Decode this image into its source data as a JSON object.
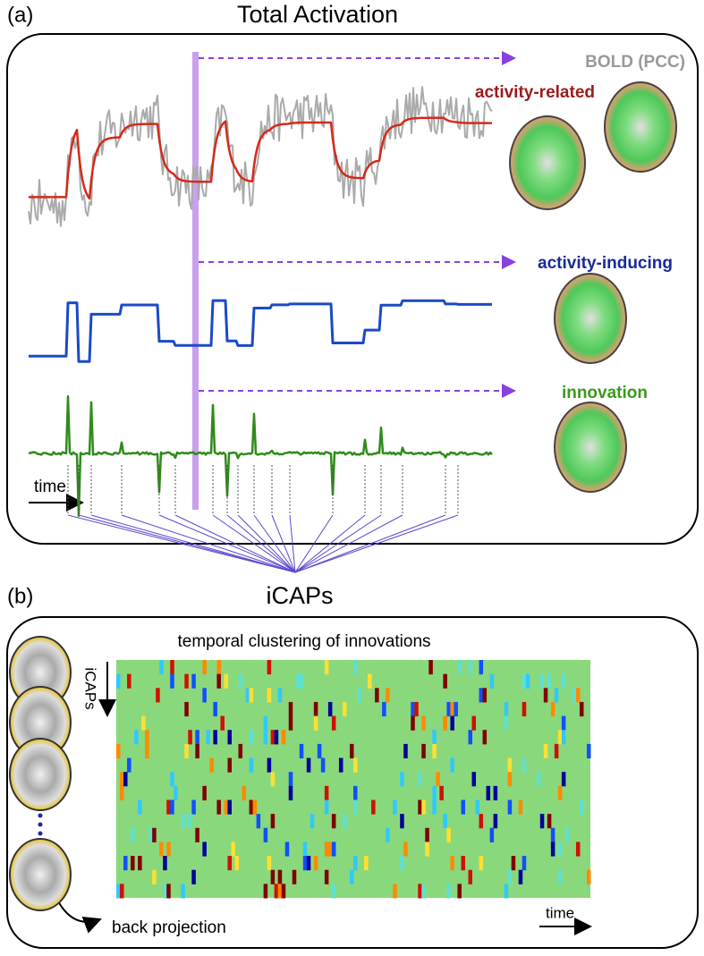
{
  "panel_a": {
    "label": "(a)",
    "title": "Total Activation",
    "bold_label": "BOLD (PCC)",
    "related_label": "activity-related",
    "inducing_label": "activity-inducing",
    "innovation_label": "innovation",
    "time_label": "time"
  },
  "panel_b": {
    "label": "(b)",
    "title": "iCAPs",
    "heatmap_title": "temporal clustering of innovations",
    "axis_label": "iCAPs",
    "back_projection": "back projection",
    "time_label": "time"
  }
}
